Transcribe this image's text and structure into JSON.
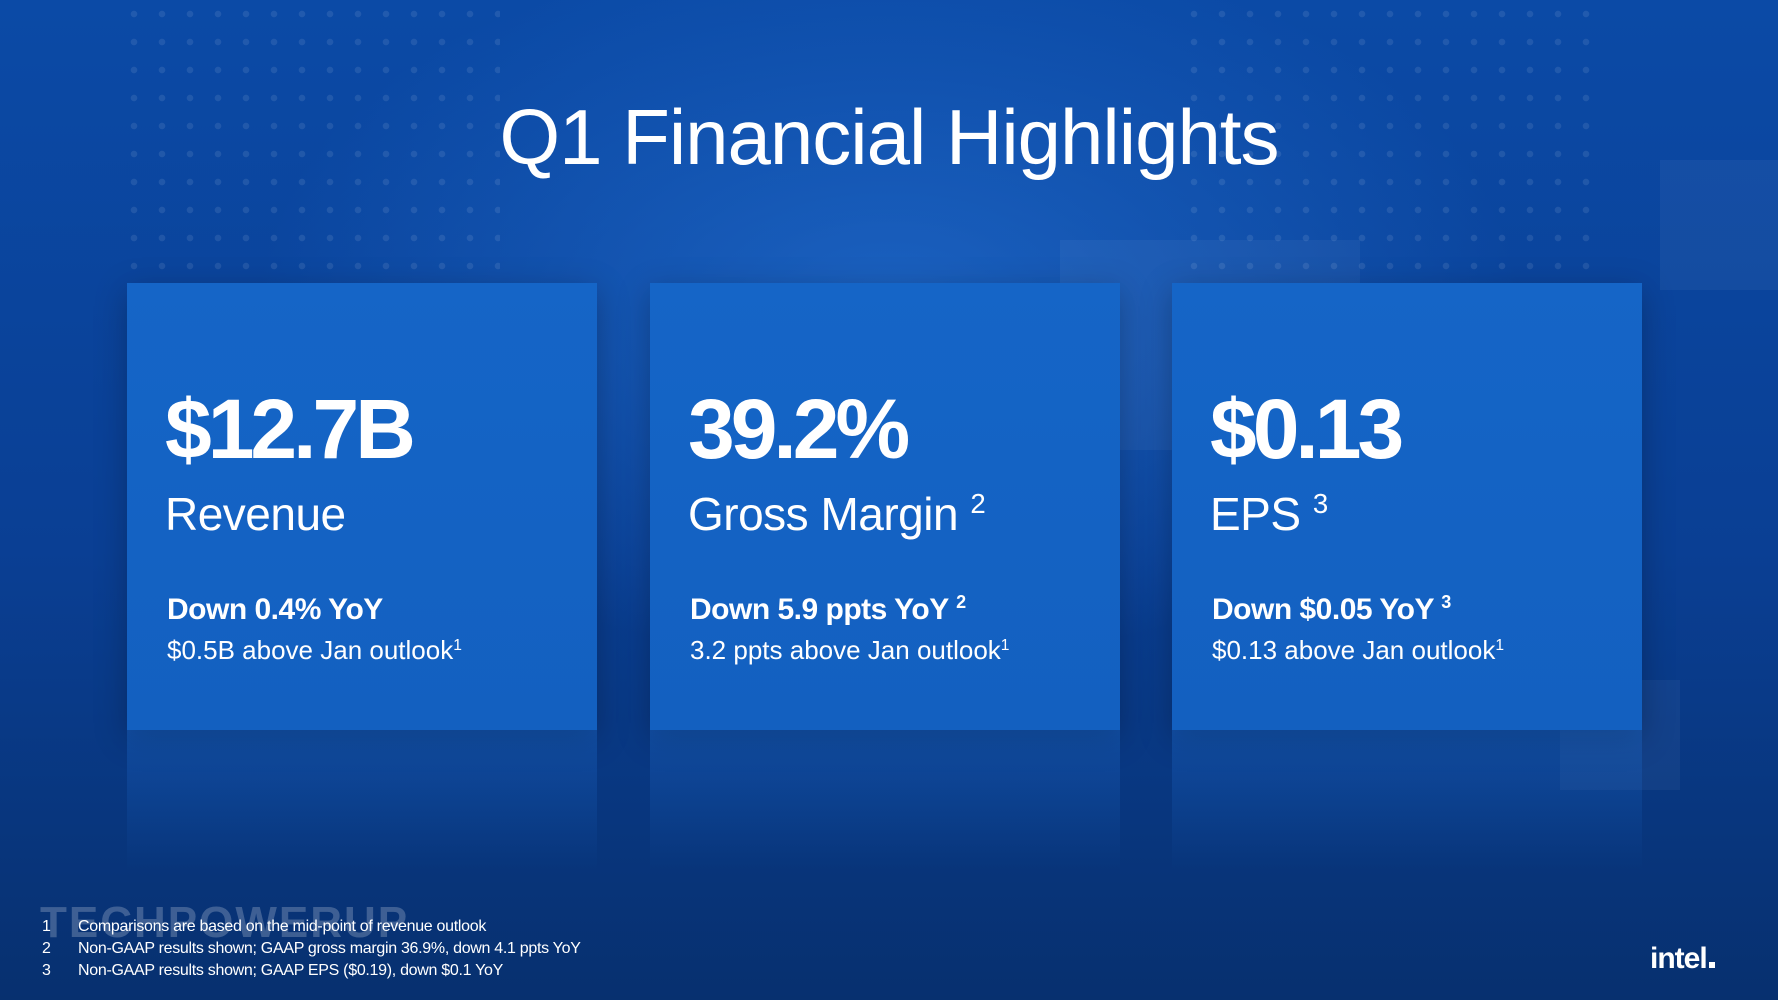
{
  "title": "Q1 Financial Highlights",
  "cards": [
    {
      "value": "$12.7B",
      "metric": "Revenue",
      "metric_note": "",
      "change": "Down 0.4% YoY",
      "change_note": "",
      "outlook": "$0.5B above Jan outlook",
      "outlook_note": "1"
    },
    {
      "value": "39.2%",
      "metric": "Gross Margin",
      "metric_note": "2",
      "change": "Down 5.9 ppts YoY",
      "change_note": "2",
      "outlook": "3.2 ppts above Jan outlook",
      "outlook_note": "1"
    },
    {
      "value": "$0.13",
      "metric": "EPS",
      "metric_note": "3",
      "change": "Down $0.05 YoY",
      "change_note": "3",
      "outlook": "$0.13 above Jan outlook",
      "outlook_note": "1"
    }
  ],
  "footnotes": [
    {
      "num": "1",
      "text": "Comparisons are based on the mid-point of revenue outlook"
    },
    {
      "num": "2",
      "text": "Non-GAAP results shown; GAAP gross margin 36.9%, down 4.1 ppts YoY"
    },
    {
      "num": "3",
      "text": "Non-GAAP results shown; GAAP EPS ($0.19), down $0.1 YoY"
    }
  ],
  "watermark": "TECHPOWERUP",
  "logo": "intel",
  "colors": {
    "background": "#0a3f94",
    "card": "#1565c7",
    "text": "#ffffff"
  }
}
